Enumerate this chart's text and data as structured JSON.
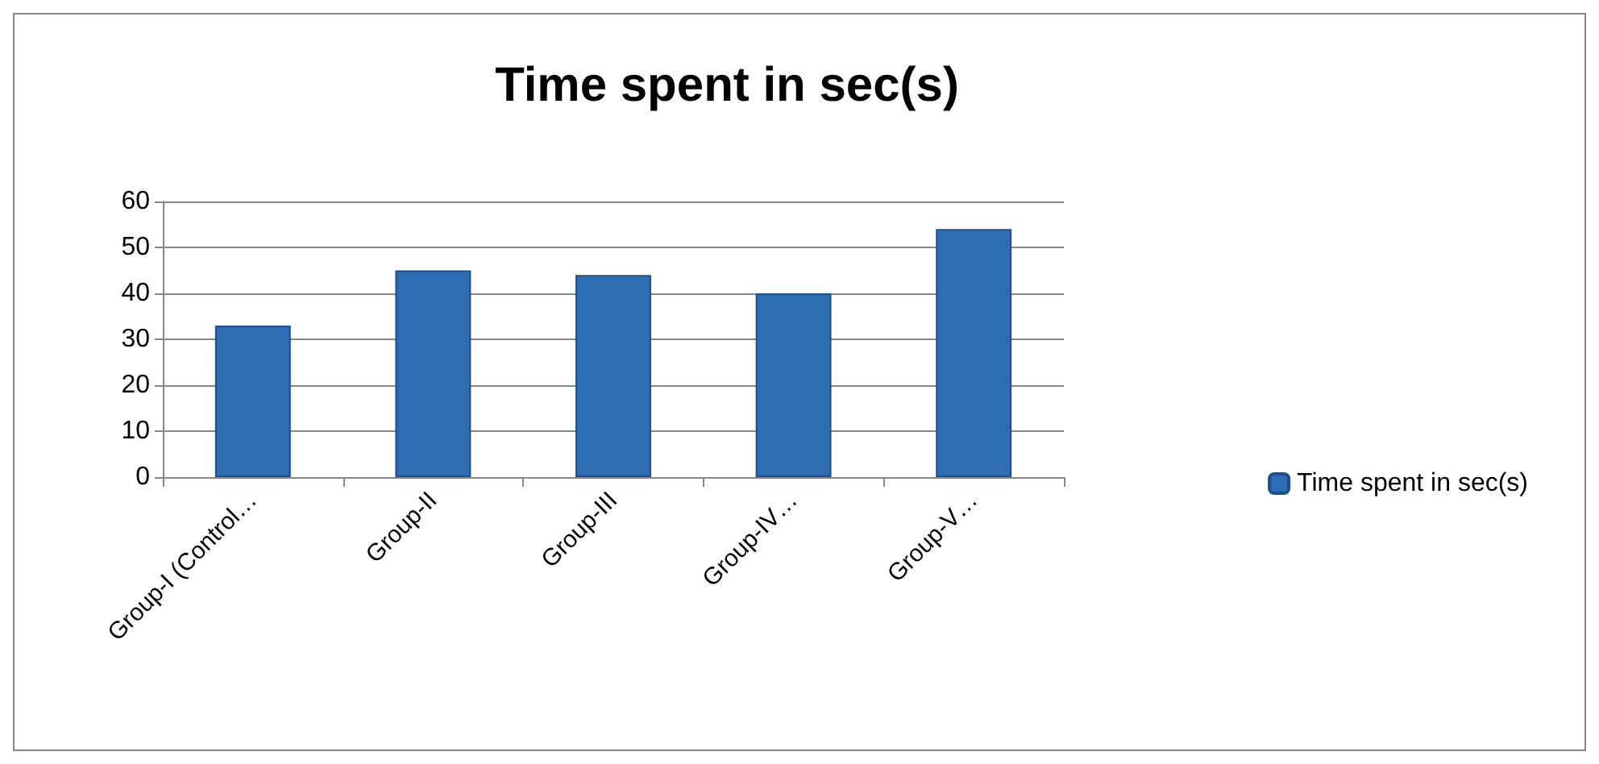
{
  "chart_data": {
    "type": "bar",
    "title": "Time spent in sec(s)",
    "categories": [
      "Group-I (Control…",
      "Group-II",
      "Group-III",
      "Group-IV…",
      "Group-V…"
    ],
    "series": [
      {
        "name": "Time spent in sec(s)",
        "color": "#2e6db4",
        "values": [
          33,
          45,
          44,
          40,
          54
        ]
      }
    ],
    "ylim": [
      0,
      60
    ],
    "yticks": [
      0,
      10,
      20,
      30,
      40,
      50,
      60
    ],
    "grid": "y",
    "legend": "right"
  }
}
